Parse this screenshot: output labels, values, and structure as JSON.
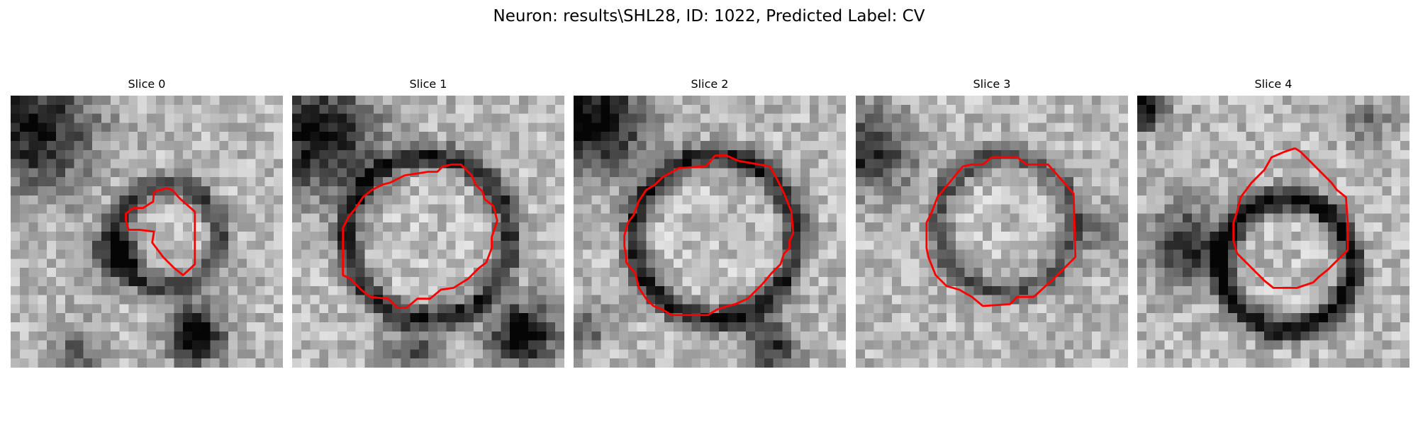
{
  "figure": {
    "title": "Neuron: results\\SHL28, ID: 1022, Predicted Label: CV"
  },
  "contour_color": "#ff0000",
  "colormap": "gray",
  "slices": [
    {
      "title": "Slice 0",
      "contour_color": "#ff0000",
      "image_features": {
        "centroid": [
          0.58,
          0.52
        ],
        "ring_radius": 0.19,
        "ring_darkness": 0.45,
        "pixels_per_side": 30,
        "dark_patches": [
          {
            "center": [
              0.08,
              0.12
            ],
            "radius": 0.22,
            "strength": 0.65
          },
          {
            "center": [
              0.38,
              0.58
            ],
            "radius": 0.1,
            "strength": 0.5
          },
          {
            "center": [
              0.68,
              0.88
            ],
            "radius": 0.1,
            "strength": 0.8
          },
          {
            "center": [
              0.25,
              0.95
            ],
            "radius": 0.1,
            "strength": 0.35
          }
        ]
      }
    },
    {
      "title": "Slice 1",
      "contour_color": "#ff0000",
      "image_features": {
        "centroid": [
          0.5,
          0.52
        ],
        "ring_radius": 0.3,
        "ring_darkness": 0.55,
        "pixels_per_side": 30,
        "dark_patches": [
          {
            "center": [
              0.1,
              0.15
            ],
            "radius": 0.2,
            "strength": 0.7
          },
          {
            "center": [
              0.85,
              0.88
            ],
            "radius": 0.12,
            "strength": 0.75
          },
          {
            "center": [
              0.45,
              0.95
            ],
            "radius": 0.1,
            "strength": 0.4
          }
        ]
      }
    },
    {
      "title": "Slice 2",
      "contour_color": "#ff0000",
      "image_features": {
        "centroid": [
          0.52,
          0.52
        ],
        "ring_radius": 0.3,
        "ring_darkness": 0.6,
        "pixels_per_side": 30,
        "dark_patches": [
          {
            "center": [
              0.08,
              0.1
            ],
            "radius": 0.18,
            "strength": 0.75
          },
          {
            "center": [
              0.72,
              0.92
            ],
            "radius": 0.1,
            "strength": 0.55
          },
          {
            "center": [
              0.05,
              0.85
            ],
            "radius": 0.08,
            "strength": 0.35
          }
        ]
      }
    },
    {
      "title": "Slice 3",
      "contour_color": "#ff0000",
      "image_features": {
        "centroid": [
          0.55,
          0.47
        ],
        "ring_radius": 0.25,
        "ring_darkness": 0.4,
        "pixels_per_side": 30,
        "dark_patches": [
          {
            "center": [
              0.05,
              0.2
            ],
            "radius": 0.15,
            "strength": 0.6
          },
          {
            "center": [
              0.9,
              0.5
            ],
            "radius": 0.1,
            "strength": 0.2
          }
        ]
      }
    },
    {
      "title": "Slice 4",
      "contour_color": "#ff0000",
      "image_features": {
        "centroid": [
          0.55,
          0.62
        ],
        "ring_radius": 0.24,
        "ring_darkness": 0.7,
        "pixels_per_side": 30,
        "dark_patches": [
          {
            "center": [
              0.18,
              0.55
            ],
            "radius": 0.14,
            "strength": 0.55
          },
          {
            "center": [
              0.02,
              0.05
            ],
            "radius": 0.08,
            "strength": 0.7
          },
          {
            "center": [
              0.85,
              0.1
            ],
            "radius": 0.08,
            "strength": 0.3
          }
        ]
      }
    }
  ]
}
